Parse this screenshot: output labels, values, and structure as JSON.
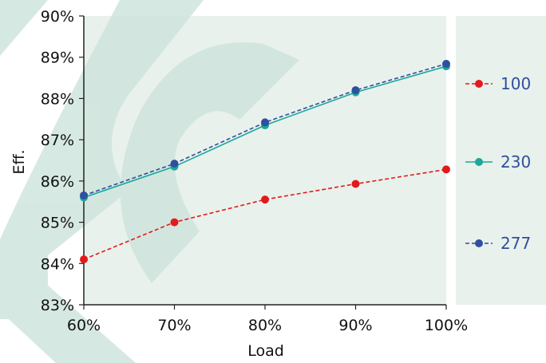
{
  "chart_data": {
    "type": "line",
    "title": "",
    "xlabel": "Load",
    "ylabel": "Eff.",
    "x": [
      "60%",
      "70%",
      "80%",
      "90%",
      "100%"
    ],
    "xvals": [
      60,
      70,
      80,
      90,
      100
    ],
    "y_ticks": [
      "83%",
      "84%",
      "85%",
      "86%",
      "87%",
      "88%",
      "89%",
      "90%"
    ],
    "ylim": [
      83,
      90
    ],
    "grid": false,
    "legend_position": "right",
    "series": [
      {
        "name": "100",
        "values": [
          84.1,
          85.0,
          85.55,
          85.93,
          86.28
        ],
        "color": "#e31a1c",
        "dash": true
      },
      {
        "name": "230",
        "values": [
          85.6,
          86.35,
          87.35,
          88.15,
          88.78
        ],
        "color": "#1aa89a",
        "dash": false
      },
      {
        "name": "277",
        "values": [
          85.65,
          86.42,
          87.42,
          88.2,
          88.84
        ],
        "color": "#2f4f9f",
        "dash": true
      }
    ],
    "background_color": "#e9f1ec",
    "watermark_color": "#cfe5dd"
  }
}
